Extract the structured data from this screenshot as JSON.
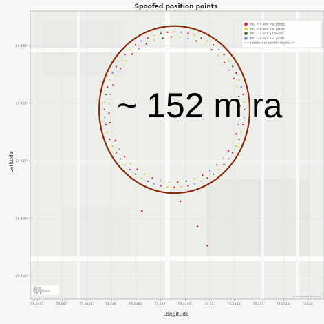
{
  "chart_data": {
    "type": "scatter",
    "title": "Spoofed position points",
    "xlabel": "Longitude",
    "ylabel": "Latitude",
    "xlim": [
      73.24635,
      73.25232
    ],
    "ylim": [
      29.4346,
      29.4396
    ],
    "x_ticks": [
      "73.2465°",
      "73.247°",
      "73.2475°",
      "73.248°",
      "73.2485°",
      "73.249°",
      "73.2495°",
      "73.25°",
      "73.2505°",
      "73.251°",
      "73.2515°",
      "73.252°"
    ],
    "y_ticks": [
      "29.435°",
      "29.436°",
      "29.437°",
      "29.438°",
      "29.439°"
    ],
    "annotation": "~ 152 m ra",
    "circle": {
      "center": [
        73.24928,
        29.43789
      ],
      "radius_lon": 0.00153,
      "radius_lat": 0.00145,
      "color": "#8b2a0a"
    },
    "legend": [
      {
        "label": "NIC = 0 with 708 points",
        "color": "#d4203a",
        "marker": "dot"
      },
      {
        "label": "NIC = 6 with 534 points",
        "color": "#e0cf3a",
        "marker": "dot"
      },
      {
        "label": "NIC = 7 with 63 points",
        "color": "#2f6b1f",
        "marker": "dot"
      },
      {
        "label": "NIC = 8 with 224 points",
        "color": "#8c8ce0",
        "marker": "dot"
      },
      {
        "label": "numbers of spoofed flights: 14",
        "color": "#8a84c4",
        "marker": "line"
      }
    ],
    "scale_bar": [
      "50 m",
      "200 ft"
    ],
    "attribution": "© OpenStreetMap contributors",
    "outliers": [
      {
        "x": 73.24862,
        "y": 29.43613,
        "c": 0
      },
      {
        "x": 73.2494,
        "y": 29.4363,
        "c": 0
      },
      {
        "x": 73.24975,
        "y": 29.43586,
        "c": 0
      },
      {
        "x": 73.24995,
        "y": 29.43553,
        "c": 0
      }
    ]
  }
}
